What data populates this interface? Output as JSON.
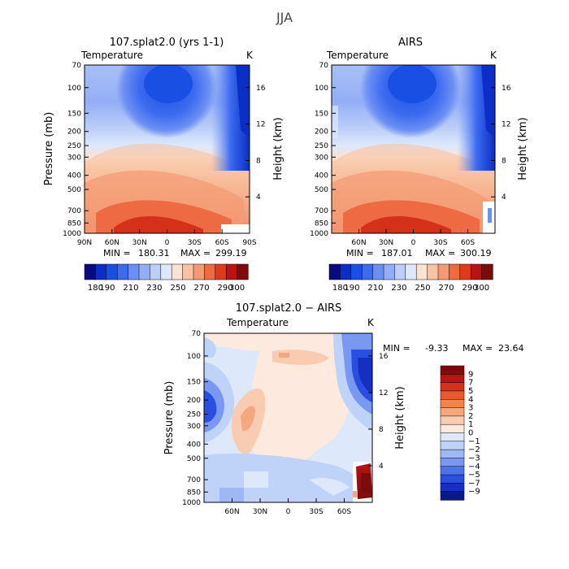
{
  "figure": {
    "season_title": "JJA"
  },
  "chart_data": [
    {
      "type": "heatmap",
      "title": "107.splat2.0 (yrs 1-1)",
      "field_label": "Temperature",
      "units": "K",
      "xlabel": "",
      "ylabel": "Pressure (mb)",
      "y2label": "Height (km)",
      "x_ticks": [
        "90N",
        "60N",
        "30N",
        "0",
        "30S",
        "60S",
        "90S"
      ],
      "x_range": [
        90,
        -90
      ],
      "pressure_ticks": [
        70,
        100,
        150,
        200,
        250,
        300,
        400,
        500,
        700,
        850,
        1000
      ],
      "pressure_range": [
        1000,
        70
      ],
      "y_scale": "log",
      "height_ticks": [
        4,
        8,
        12,
        16
      ],
      "stats": {
        "min_label": "MIN =",
        "min": "180.31",
        "max_label": "MAX =",
        "max": "299.19"
      },
      "colorbar": {
        "orientation": "horizontal",
        "levels": [
          180,
          190,
          200,
          210,
          220,
          230,
          240,
          250,
          260,
          270,
          280,
          290,
          300
        ],
        "tick_labels": [
          "180",
          "190",
          "210",
          "230",
          "250",
          "270",
          "290",
          "300"
        ],
        "colors": [
          "#0a0a80",
          "#0b2fc4",
          "#1a4fe3",
          "#3c6bf0",
          "#6b8ff3",
          "#93aef6",
          "#bccff8",
          "#dde8fb",
          "#fbe3d3",
          "#f8c3a2",
          "#f49a72",
          "#ee6a43",
          "#e03a1d",
          "#b81414",
          "#7d0b0b"
        ]
      },
      "grid": false
    },
    {
      "type": "heatmap",
      "title": "AIRS",
      "field_label": "Temperature",
      "units": "K",
      "xlabel": "",
      "ylabel": "",
      "y2label": "Height (km)",
      "x_ticks": [
        "60N",
        "30N",
        "0",
        "30S",
        "60S"
      ],
      "x_range": [
        90,
        -90
      ],
      "pressure_ticks": [
        70,
        100,
        150,
        200,
        250,
        300,
        400,
        500,
        700,
        850,
        1000
      ],
      "pressure_range": [
        1000,
        70
      ],
      "y_scale": "log",
      "height_ticks": [
        4,
        8,
        12,
        16
      ],
      "stats": {
        "min_label": "MIN =",
        "min": "187.01",
        "max_label": "MAX =",
        "max": "300.19"
      },
      "colorbar": {
        "orientation": "horizontal",
        "levels": [
          180,
          190,
          200,
          210,
          220,
          230,
          240,
          250,
          260,
          270,
          280,
          290,
          300
        ],
        "tick_labels": [
          "180",
          "190",
          "210",
          "230",
          "250",
          "270",
          "290",
          "300"
        ],
        "colors": [
          "#0a0a80",
          "#0b2fc4",
          "#1a4fe3",
          "#3c6bf0",
          "#6b8ff3",
          "#93aef6",
          "#bccff8",
          "#dde8fb",
          "#fbe3d3",
          "#f8c3a2",
          "#f49a72",
          "#ee6a43",
          "#e03a1d",
          "#b81414",
          "#7d0b0b"
        ]
      },
      "grid": false
    },
    {
      "type": "heatmap",
      "title": "107.splat2.0 − AIRS",
      "field_label": "Temperature",
      "units": "K",
      "xlabel": "",
      "ylabel": "Pressure (mb)",
      "y2label": "Height (km)",
      "x_ticks": [
        "60N",
        "30N",
        "0",
        "30S",
        "60S"
      ],
      "x_range": [
        90,
        -90
      ],
      "pressure_ticks": [
        70,
        100,
        150,
        200,
        250,
        300,
        400,
        500,
        700,
        850,
        1000
      ],
      "pressure_range": [
        1000,
        70
      ],
      "y_scale": "log",
      "height_ticks": [
        4,
        8,
        12,
        16
      ],
      "stats": {
        "min_label": "MIN =",
        "min": "-9.33",
        "max_label": "MAX =",
        "max": "23.64"
      },
      "colorbar": {
        "orientation": "vertical",
        "tick_labels": [
          "9",
          "7",
          "5",
          "4",
          "3",
          "2",
          "1",
          "0",
          "−1",
          "−2",
          "−3",
          "−4",
          "−5",
          "−7",
          "−9"
        ],
        "colors": [
          "#7d0b0b",
          "#b81414",
          "#d4301a",
          "#e55a2e",
          "#f08552",
          "#f5a880",
          "#f9cbb0",
          "#fde9dd",
          "#dde8fb",
          "#bfd2f8",
          "#9fb8f5",
          "#7898f1",
          "#4e74ec",
          "#2a4fe0",
          "#1530c0",
          "#0a1890"
        ]
      },
      "grid": false
    }
  ]
}
